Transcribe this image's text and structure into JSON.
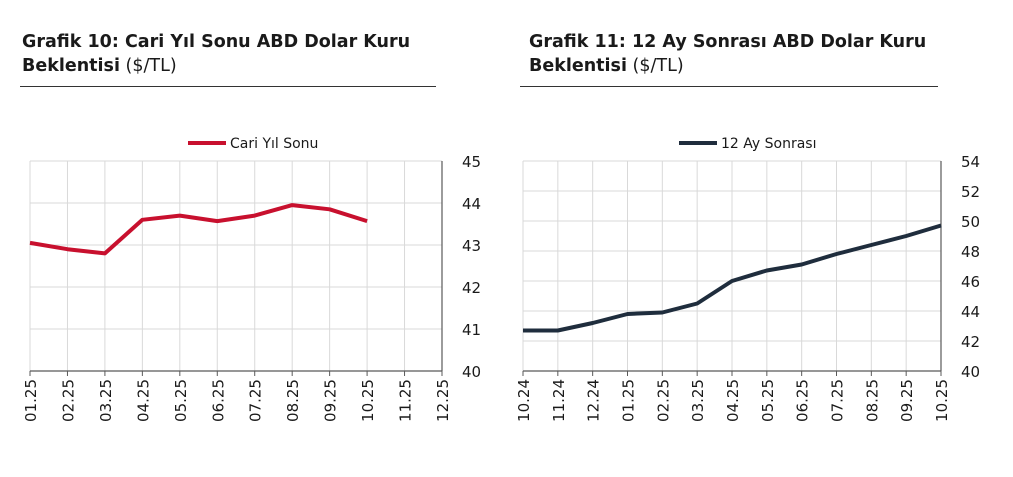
{
  "charts": [
    {
      "title_bold_line1": "Grafik 10: Cari Yıl Sonu ABD Dolar Kuru",
      "title_bold_line2": "Beklentisi",
      "title_unit": "($/TL)"
    },
    {
      "title_bold_line1": "Grafik 11: 12 Ay Sonrası ABD Dolar Kuru",
      "title_bold_line2": "Beklentisi",
      "title_unit": "($/TL)"
    }
  ],
  "chart_data": [
    {
      "type": "line",
      "title": "Grafik 10: Cari Yıl Sonu ABD Dolar Kuru Beklentisi ($/TL)",
      "categories": [
        "01.25",
        "02.25",
        "03.25",
        "04.25",
        "05.25",
        "06.25",
        "07.25",
        "08.25",
        "09.25",
        "10.25",
        "11.25",
        "12.25"
      ],
      "series": [
        {
          "name": "Cari Yıl Sonu",
          "values": [
            43.05,
            42.9,
            42.8,
            43.6,
            43.7,
            43.57,
            43.7,
            43.95,
            43.85,
            43.57,
            null,
            null
          ]
        }
      ],
      "ylim": [
        40,
        45
      ],
      "yticks": [
        40,
        41,
        42,
        43,
        44,
        45
      ],
      "y_axis_side": "right",
      "grid": true,
      "legend": "top-center",
      "color": "#c8102e"
    },
    {
      "type": "line",
      "title": "Grafik 11: 12 Ay Sonrası ABD Dolar Kuru Beklentisi ($/TL)",
      "categories": [
        "10.24",
        "11.24",
        "12.24",
        "01.25",
        "02.25",
        "03.25",
        "04.25",
        "05.25",
        "06.25",
        "07.25",
        "08.25",
        "09.25",
        "10.25"
      ],
      "series": [
        {
          "name": "12 Ay Sonrası",
          "values": [
            42.7,
            42.7,
            43.2,
            43.8,
            43.9,
            44.5,
            46.0,
            46.7,
            47.1,
            47.8,
            48.4,
            49.0,
            49.7
          ]
        }
      ],
      "ylim": [
        40,
        54
      ],
      "yticks": [
        40,
        42,
        44,
        46,
        48,
        50,
        52,
        54
      ],
      "y_axis_side": "right",
      "grid": true,
      "legend": "top-center",
      "color": "#1f2d3d"
    }
  ]
}
